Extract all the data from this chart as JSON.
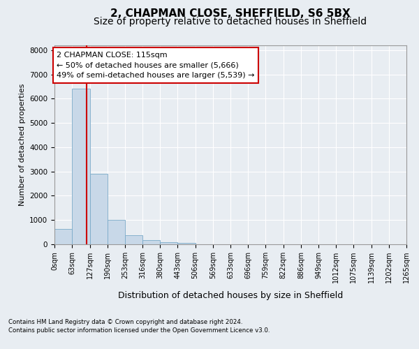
{
  "title": "2, CHAPMAN CLOSE, SHEFFIELD, S6 5BX",
  "subtitle": "Size of property relative to detached houses in Sheffield",
  "xlabel": "Distribution of detached houses by size in Sheffield",
  "ylabel": "Number of detached properties",
  "footer_line1": "Contains HM Land Registry data © Crown copyright and database right 2024.",
  "footer_line2": "Contains public sector information licensed under the Open Government Licence v3.0.",
  "property_size": 115,
  "annotation_line1": "2 CHAPMAN CLOSE: 115sqm",
  "annotation_line2": "← 50% of detached houses are smaller (5,666)",
  "annotation_line3": "49% of semi-detached houses are larger (5,539) →",
  "bar_color": "#c8d8e8",
  "bar_edge_color": "#7aaac8",
  "vline_color": "#cc0000",
  "bin_edges": [
    0,
    63,
    127,
    190,
    253,
    316,
    380,
    443,
    506,
    569,
    633,
    696,
    759,
    822,
    886,
    949,
    1012,
    1075,
    1139,
    1202,
    1265
  ],
  "bin_labels": [
    "0sqm",
    "63sqm",
    "127sqm",
    "190sqm",
    "253sqm",
    "316sqm",
    "380sqm",
    "443sqm",
    "506sqm",
    "569sqm",
    "633sqm",
    "696sqm",
    "759sqm",
    "822sqm",
    "886sqm",
    "949sqm",
    "1012sqm",
    "1075sqm",
    "1139sqm",
    "1202sqm",
    "1265sqm"
  ],
  "counts": [
    620,
    6420,
    2900,
    1000,
    370,
    160,
    80,
    70,
    0,
    0,
    0,
    0,
    0,
    0,
    0,
    0,
    0,
    0,
    0,
    0
  ],
  "ylim": [
    0,
    8200
  ],
  "background_color": "#e8edf2",
  "plot_background": "#e8edf2",
  "title_fontsize": 11,
  "subtitle_fontsize": 10,
  "annotation_fontsize": 8,
  "tick_fontsize": 7,
  "ylabel_fontsize": 8,
  "xlabel_fontsize": 9
}
